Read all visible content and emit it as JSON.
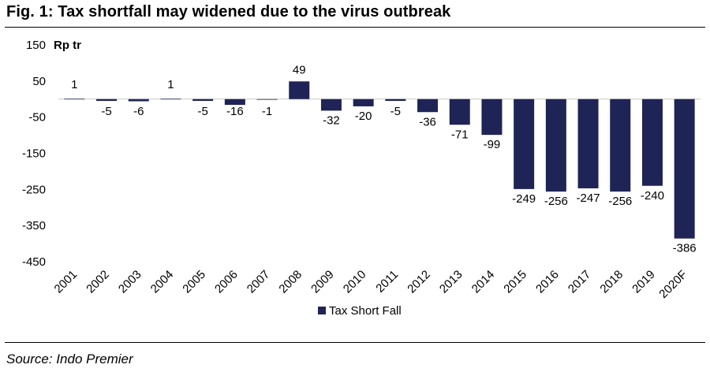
{
  "figure": {
    "title": "Fig. 1:  Tax shortfall may widened due to the virus outbreak",
    "source": "Source: Indo Premier"
  },
  "chart_data": {
    "type": "bar",
    "unit_label": "Rp  tr",
    "categories": [
      "2001",
      "2002",
      "2003",
      "2004",
      "2005",
      "2006",
      "2007",
      "2008",
      "2009",
      "2010",
      "2011",
      "2012",
      "2013",
      "2014",
      "2015",
      "2016",
      "2017",
      "2018",
      "2019",
      "2020F"
    ],
    "series": [
      {
        "name": "Tax Short Fall",
        "color": "#1f2456",
        "values": [
          1,
          -5,
          -6,
          1,
          -5,
          -16,
          -1,
          49,
          -32,
          -20,
          -5,
          -36,
          -71,
          -99,
          -249,
          -256,
          -247,
          -256,
          -240,
          -386
        ]
      }
    ],
    "y_ticks": [
      150,
      50,
      -50,
      -150,
      -250,
      -350,
      -450
    ],
    "ylim": [
      -450,
      150
    ],
    "grid": false,
    "legend_position": "bottom"
  }
}
